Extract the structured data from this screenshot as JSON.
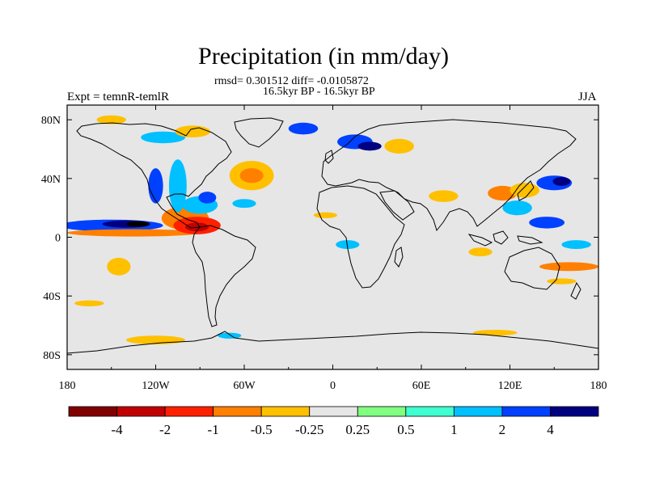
{
  "title": "Precipitation (in mm/day)",
  "stats_line": "rmsd= 0.301512 diff= -0.0105872",
  "period_line": "16.5kyr BP - 16.5kyr BP",
  "left_label": "Expt = temnR-temlR",
  "right_label": "JJA",
  "map": {
    "projection": "cylindrical-equidistant",
    "lon_range": [
      -180,
      180
    ],
    "lat_range": [
      -90,
      90
    ],
    "background_color": "#e6e6e6",
    "x_ticks": [
      {
        "lon": -180,
        "label": "180"
      },
      {
        "lon": -120,
        "label": "120W"
      },
      {
        "lon": -60,
        "label": "60W"
      },
      {
        "lon": 0,
        "label": "0"
      },
      {
        "lon": 60,
        "label": "60E"
      },
      {
        "lon": 120,
        "label": "120E"
      },
      {
        "lon": 180,
        "label": "180"
      }
    ],
    "y_ticks": [
      {
        "lat": 80,
        "label": "80N"
      },
      {
        "lat": 40,
        "label": "40N"
      },
      {
        "lat": 0,
        "label": "0"
      },
      {
        "lat": -40,
        "label": "40S"
      },
      {
        "lat": -80,
        "label": "80S"
      }
    ],
    "anomalies": [
      {
        "lon": -150,
        "lat": 8,
        "rlon": 35,
        "rlat": 4,
        "level": 9
      },
      {
        "lon": -140,
        "lat": 9,
        "rlon": 16,
        "rlat": 2.5,
        "level": 10
      },
      {
        "lon": -132,
        "lat": 9,
        "rlon": 8,
        "rlat": 2,
        "level": 11
      },
      {
        "lon": -135,
        "lat": 3,
        "rlon": 45,
        "rlat": 2.5,
        "level": 3
      },
      {
        "lon": -100,
        "lat": 13,
        "rlon": 16,
        "rlat": 8,
        "level": 3
      },
      {
        "lon": -92,
        "lat": 8,
        "rlon": 16,
        "rlat": 6,
        "level": 2
      },
      {
        "lon": -92,
        "lat": 7,
        "rlon": 8,
        "rlat": 3,
        "level": 1
      },
      {
        "lon": -105,
        "lat": 35,
        "rlon": 6,
        "rlat": 18,
        "level": 8
      },
      {
        "lon": -120,
        "lat": 35,
        "rlon": 5,
        "rlat": 12,
        "level": 9
      },
      {
        "lon": -90,
        "lat": 22,
        "rlon": 12,
        "rlat": 6,
        "level": 8
      },
      {
        "lon": -85,
        "lat": 27,
        "rlon": 6,
        "rlat": 4,
        "level": 9
      },
      {
        "lon": -55,
        "lat": 42,
        "rlon": 15,
        "rlat": 10,
        "level": 4
      },
      {
        "lon": -55,
        "lat": 42,
        "rlon": 8,
        "rlat": 5,
        "level": 3
      },
      {
        "lon": -60,
        "lat": 23,
        "rlon": 8,
        "rlat": 3,
        "level": 8
      },
      {
        "lon": -150,
        "lat": 80,
        "rlon": 10,
        "rlat": 3,
        "level": 4
      },
      {
        "lon": -115,
        "lat": 68,
        "rlon": 15,
        "rlat": 4,
        "level": 8
      },
      {
        "lon": -95,
        "lat": 72,
        "rlon": 12,
        "rlat": 4,
        "level": 4
      },
      {
        "lon": -145,
        "lat": -20,
        "rlon": 8,
        "rlat": 6,
        "level": 4
      },
      {
        "lon": -165,
        "lat": -45,
        "rlon": 10,
        "rlat": 2,
        "level": 4
      },
      {
        "lon": -20,
        "lat": 74,
        "rlon": 10,
        "rlat": 4,
        "level": 9
      },
      {
        "lon": 15,
        "lat": 65,
        "rlon": 12,
        "rlat": 5,
        "level": 9
      },
      {
        "lon": 25,
        "lat": 62,
        "rlon": 8,
        "rlat": 3,
        "level": 10
      },
      {
        "lon": 45,
        "lat": 62,
        "rlon": 10,
        "rlat": 5,
        "level": 4
      },
      {
        "lon": -5,
        "lat": 15,
        "rlon": 8,
        "rlat": 2,
        "level": 4
      },
      {
        "lon": 10,
        "lat": -5,
        "rlon": 8,
        "rlat": 3,
        "level": 8
      },
      {
        "lon": 75,
        "lat": 28,
        "rlon": 10,
        "rlat": 4,
        "level": 4
      },
      {
        "lon": 115,
        "lat": 30,
        "rlon": 10,
        "rlat": 5,
        "level": 3
      },
      {
        "lon": 130,
        "lat": 32,
        "rlon": 10,
        "rlat": 5,
        "level": 4
      },
      {
        "lon": 150,
        "lat": 37,
        "rlon": 12,
        "rlat": 5,
        "level": 9
      },
      {
        "lon": 155,
        "lat": 38,
        "rlon": 6,
        "rlat": 3,
        "level": 10
      },
      {
        "lon": 125,
        "lat": 20,
        "rlon": 10,
        "rlat": 5,
        "level": 8
      },
      {
        "lon": 145,
        "lat": 10,
        "rlon": 12,
        "rlat": 4,
        "level": 9
      },
      {
        "lon": 160,
        "lat": -20,
        "rlon": 20,
        "rlat": 3,
        "level": 3
      },
      {
        "lon": 100,
        "lat": -10,
        "rlon": 8,
        "rlat": 3,
        "level": 4
      },
      {
        "lon": 155,
        "lat": -30,
        "rlon": 10,
        "rlat": 2,
        "level": 4
      },
      {
        "lon": 165,
        "lat": -5,
        "rlon": 10,
        "rlat": 3,
        "level": 8
      },
      {
        "lon": -120,
        "lat": -70,
        "rlon": 20,
        "rlat": 3,
        "level": 4
      },
      {
        "lon": -70,
        "lat": -67,
        "rlon": 8,
        "rlat": 2,
        "level": 8
      },
      {
        "lon": 110,
        "lat": -65,
        "rlon": 15,
        "rlat": 2,
        "level": 4
      }
    ]
  },
  "colorbar": {
    "colors": [
      "#800000",
      "#c00000",
      "#ff2000",
      "#ff8000",
      "#ffc000",
      "#e6e6e6",
      "#80ff80",
      "#40ffd0",
      "#00c0ff",
      "#0040ff",
      "#000080"
    ],
    "labels": [
      "-4",
      "-2",
      "-1",
      "-0.5",
      "-0.25",
      "0.25",
      "0.5",
      "1",
      "2",
      "4"
    ]
  }
}
